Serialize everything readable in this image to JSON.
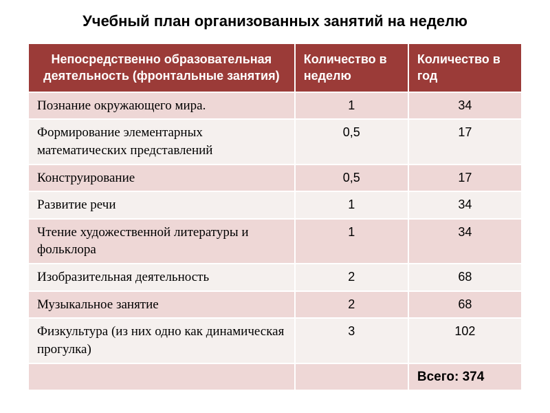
{
  "title": "Учебный план  организованных занятий на неделю",
  "headers": {
    "col1": "Непосредственно образовательная деятельность (фронтальные занятия)",
    "col2": "Количество в неделю",
    "col3": "Количество в год"
  },
  "rows": [
    {
      "activity": "Познание окружающего мира.",
      "per_week": "1",
      "per_year": "34",
      "shade": "pink"
    },
    {
      "activity": "Формирование элементарных математических представлений",
      "per_week": "0,5",
      "per_year": "17",
      "shade": "white"
    },
    {
      "activity": "Конструирование",
      "per_week": "0,5",
      "per_year": "17",
      "shade": "pink"
    },
    {
      "activity": "Развитие речи",
      "per_week": "1",
      "per_year": "34",
      "shade": "white"
    },
    {
      "activity": "Чтение художественной литературы и фольклора",
      "per_week": "1",
      "per_year": "34",
      "shade": "pink"
    },
    {
      "activity": "Изобразительная деятельность",
      "per_week": "2",
      "per_year": "68",
      "shade": "white"
    },
    {
      "activity": "Музыкальное занятие",
      "per_week": "2",
      "per_year": "68",
      "shade": "pink"
    },
    {
      "activity": "Физкультура (из них одно как динамическая прогулка)",
      "per_week": "3",
      "per_year": "102",
      "shade": "white"
    }
  ],
  "total_label": "Всего: 374",
  "style": {
    "header_bg": "#9b3b38",
    "header_text": "#ffffff",
    "row_pink_bg": "#eed7d6",
    "row_white_bg": "#f5f0ee",
    "border_color": "#ffffff",
    "title_fontsize": 22,
    "body_fontsize": 18,
    "activity_font": "Times New Roman",
    "number_font": "Arial"
  }
}
